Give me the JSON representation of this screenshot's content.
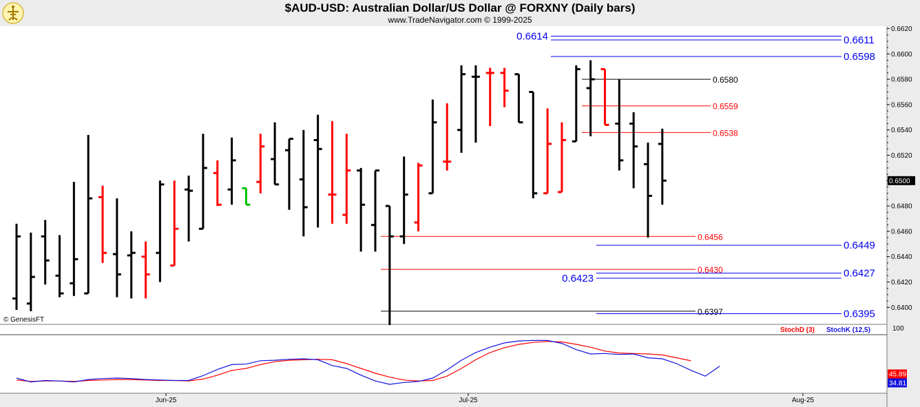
{
  "header": {
    "title": "$AUD-USD:  Australian Dollar/US Dollar @ FORXNY  (Daily bars)",
    "subtitle": "www.TradeNavigator.com © 1999-2025",
    "credit": "© GenesisFT"
  },
  "chart_data": [
    {
      "type": "ohlc",
      "ylim": [
        0.6385,
        0.6625
      ],
      "y_ticks": [
        "0.6620",
        "0.6600",
        "0.6580",
        "0.6560",
        "0.6540",
        "0.6520",
        "0.6500",
        "0.6480",
        "0.6460",
        "0.6440",
        "0.6420",
        "0.6400"
      ],
      "last_price": "0.6500",
      "x_labels": [
        "Jun-25",
        "Jul-25",
        "Aug-25"
      ],
      "colors": {
        "bar": "#000000",
        "highlight": "#ff0000",
        "inside": "#00c000"
      },
      "bars": [
        {
          "o": 0.6407,
          "h": 0.6466,
          "l": 0.6398,
          "c": 0.6456,
          "hl": "k"
        },
        {
          "o": 0.6403,
          "h": 0.6459,
          "l": 0.6397,
          "c": 0.6424,
          "hl": "k"
        },
        {
          "o": 0.6456,
          "h": 0.6469,
          "l": 0.6418,
          "c": 0.6437,
          "hl": "k"
        },
        {
          "o": 0.6425,
          "h": 0.6457,
          "l": 0.6408,
          "c": 0.6411,
          "hl": "k"
        },
        {
          "o": 0.6419,
          "h": 0.6499,
          "l": 0.6409,
          "c": 0.6438,
          "hl": "k"
        },
        {
          "o": 0.6411,
          "h": 0.6536,
          "l": 0.6411,
          "c": 0.6486,
          "hl": "k"
        },
        {
          "o": 0.6487,
          "h": 0.6496,
          "l": 0.6435,
          "c": 0.6443,
          "hl": "r"
        },
        {
          "o": 0.6442,
          "h": 0.6486,
          "l": 0.6408,
          "c": 0.6426,
          "hl": "k"
        },
        {
          "o": 0.6441,
          "h": 0.646,
          "l": 0.6407,
          "c": 0.6443,
          "hl": "k"
        },
        {
          "o": 0.644,
          "h": 0.6452,
          "l": 0.6407,
          "c": 0.6426,
          "hl": "r"
        },
        {
          "o": 0.6443,
          "h": 0.65,
          "l": 0.642,
          "c": 0.6497,
          "hl": "k"
        },
        {
          "o": 0.6433,
          "h": 0.65,
          "l": 0.6433,
          "c": 0.6462,
          "hl": "r"
        },
        {
          "o": 0.6493,
          "h": 0.6504,
          "l": 0.6452,
          "c": 0.6492,
          "hl": "k"
        },
        {
          "o": 0.6462,
          "h": 0.6537,
          "l": 0.6462,
          "c": 0.651,
          "hl": "k"
        },
        {
          "o": 0.6506,
          "h": 0.6516,
          "l": 0.648,
          "c": 0.6481,
          "hl": "r"
        },
        {
          "o": 0.6493,
          "h": 0.6534,
          "l": 0.6481,
          "c": 0.6516,
          "hl": "k"
        },
        {
          "o": 0.6494,
          "h": 0.6494,
          "l": 0.6481,
          "c": 0.6481,
          "hl": "g"
        },
        {
          "o": 0.6499,
          "h": 0.6537,
          "l": 0.649,
          "c": 0.6527,
          "hl": "r"
        },
        {
          "o": 0.6517,
          "h": 0.6546,
          "l": 0.6497,
          "c": 0.6497,
          "hl": "k"
        },
        {
          "o": 0.6524,
          "h": 0.6533,
          "l": 0.6477,
          "c": 0.6533,
          "hl": "k"
        },
        {
          "o": 0.6501,
          "h": 0.654,
          "l": 0.6456,
          "c": 0.6479,
          "hl": "k"
        },
        {
          "o": 0.6532,
          "h": 0.6552,
          "l": 0.6463,
          "c": 0.6525,
          "hl": "k"
        },
        {
          "o": 0.6489,
          "h": 0.6547,
          "l": 0.6466,
          "c": 0.6489,
          "hl": "r"
        },
        {
          "o": 0.6473,
          "h": 0.6537,
          "l": 0.6466,
          "c": 0.6508,
          "hl": "r"
        },
        {
          "o": 0.6508,
          "h": 0.651,
          "l": 0.6444,
          "c": 0.6481,
          "hl": "k"
        },
        {
          "o": 0.6465,
          "h": 0.6508,
          "l": 0.6444,
          "c": 0.6508,
          "hl": "k"
        },
        {
          "o": 0.648,
          "h": 0.648,
          "l": 0.6386,
          "c": 0.6456,
          "hl": "k"
        },
        {
          "o": 0.6456,
          "h": 0.6519,
          "l": 0.645,
          "c": 0.6489,
          "hl": "k"
        },
        {
          "o": 0.6467,
          "h": 0.6514,
          "l": 0.646,
          "c": 0.6512,
          "hl": "r"
        },
        {
          "o": 0.649,
          "h": 0.6564,
          "l": 0.649,
          "c": 0.6546,
          "hl": "k"
        },
        {
          "o": 0.6515,
          "h": 0.6561,
          "l": 0.6508,
          "c": 0.6515,
          "hl": "r"
        },
        {
          "o": 0.654,
          "h": 0.6591,
          "l": 0.6522,
          "c": 0.6584,
          "hl": "k"
        },
        {
          "o": 0.6582,
          "h": 0.6591,
          "l": 0.653,
          "c": 0.6582,
          "hl": "k"
        },
        {
          "o": 0.6585,
          "h": 0.6589,
          "l": 0.6543,
          "c": 0.6585,
          "hl": "r"
        },
        {
          "o": 0.6585,
          "h": 0.6589,
          "l": 0.6558,
          "c": 0.6571,
          "hl": "r"
        },
        {
          "o": 0.6584,
          "h": 0.6584,
          "l": 0.6546,
          "c": 0.6546,
          "hl": "k"
        },
        {
          "o": 0.657,
          "h": 0.657,
          "l": 0.6486,
          "c": 0.649,
          "hl": "k"
        },
        {
          "o": 0.649,
          "h": 0.6557,
          "l": 0.649,
          "c": 0.6529,
          "hl": "r"
        },
        {
          "o": 0.6491,
          "h": 0.6546,
          "l": 0.6491,
          "c": 0.6532,
          "hl": "r"
        },
        {
          "o": 0.6531,
          "h": 0.6591,
          "l": 0.6531,
          "c": 0.6588,
          "hl": "k"
        },
        {
          "o": 0.6573,
          "h": 0.6595,
          "l": 0.6535,
          "c": 0.658,
          "hl": "k"
        },
        {
          "o": 0.6588,
          "h": 0.6588,
          "l": 0.6544,
          "c": 0.6544,
          "hl": "r"
        },
        {
          "o": 0.6545,
          "h": 0.658,
          "l": 0.6508,
          "c": 0.6516,
          "hl": "k"
        },
        {
          "o": 0.6545,
          "h": 0.6554,
          "l": 0.6494,
          "c": 0.6527,
          "hl": "k"
        },
        {
          "o": 0.6513,
          "h": 0.653,
          "l": 0.6455,
          "c": 0.6488,
          "hl": "k"
        },
        {
          "o": 0.6529,
          "h": 0.6541,
          "l": 0.6481,
          "c": 0.65,
          "hl": "k"
        }
      ],
      "levels": [
        {
          "label": "0.6614",
          "value": 0.6614,
          "color": "#0000ee",
          "big": true,
          "label_side": "left"
        },
        {
          "label": "0.6611",
          "value": 0.6611,
          "color": "#0000ee",
          "big": true,
          "label_side": "right"
        },
        {
          "label": "0.6598",
          "value": 0.6598,
          "color": "#0000ee",
          "big": true,
          "label_side": "right"
        },
        {
          "label": "0.6580",
          "value": 0.658,
          "color": "#000000",
          "big": false,
          "label_side": "right"
        },
        {
          "label": "0.6559",
          "value": 0.6559,
          "color": "#ff0000",
          "big": false,
          "label_side": "right"
        },
        {
          "label": "0.6538",
          "value": 0.6538,
          "color": "#ff0000",
          "big": false,
          "label_side": "right"
        },
        {
          "label": "0.6456",
          "value": 0.6456,
          "color": "#ff0000",
          "big": false,
          "label_side": "right"
        },
        {
          "label": "0.6449",
          "value": 0.6449,
          "color": "#0000ee",
          "big": true,
          "label_side": "right"
        },
        {
          "label": "0.6430",
          "value": 0.643,
          "color": "#ff0000",
          "big": false,
          "label_side": "right"
        },
        {
          "label": "0.6427",
          "value": 0.6427,
          "color": "#0000ee",
          "big": true,
          "label_side": "right"
        },
        {
          "label": "0.6423",
          "value": 0.6423,
          "color": "#0000ee",
          "big": true,
          "label_side": "left"
        },
        {
          "label": "0.6397",
          "value": 0.6397,
          "color": "#000000",
          "big": false,
          "label_side": "right"
        },
        {
          "label": "0.6395",
          "value": 0.6395,
          "color": "#0000ee",
          "big": true,
          "label_side": "right"
        }
      ]
    },
    {
      "type": "line",
      "ylim": [
        0,
        100
      ],
      "y_ticks": [
        "100"
      ],
      "series": [
        {
          "name": "StochD (3)",
          "color": "#ff0000",
          "value_label": "45.89",
          "values": [
            6,
            3,
            4,
            4,
            3,
            5,
            6,
            7,
            7,
            6,
            5,
            5,
            4,
            8,
            16,
            26,
            30,
            38,
            44,
            47,
            48,
            49,
            48,
            40,
            30,
            20,
            12,
            6,
            4,
            5,
            14,
            30,
            48,
            63,
            73,
            80,
            84,
            86,
            85,
            80,
            74,
            66,
            62,
            61,
            60,
            58,
            52,
            45.89
          ]
        },
        {
          "name": "StochK (12,5)",
          "color": "#1010dd",
          "value_label": "34.81",
          "values": [
            10,
            2,
            5,
            4,
            2,
            7,
            9,
            10,
            9,
            7,
            6,
            5,
            5,
            15,
            28,
            38,
            39,
            46,
            47,
            49,
            50,
            48,
            36,
            30,
            16,
            4,
            -3,
            1,
            3,
            10,
            27,
            47,
            63,
            74,
            83,
            87,
            88,
            88,
            82,
            69,
            60,
            61,
            59,
            60,
            52,
            50,
            40,
            26,
            14,
            34.81
          ]
        }
      ]
    }
  ]
}
